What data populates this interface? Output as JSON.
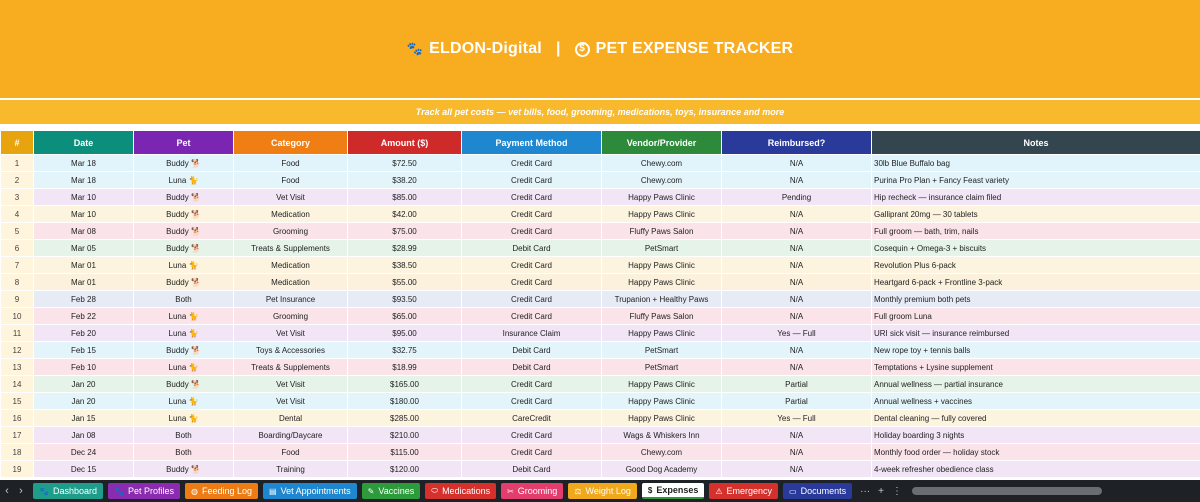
{
  "header": {
    "brand": "ELDON-Digital",
    "separator": "|",
    "title": "PET EXPENSE TRACKER",
    "subtitle": "Track all pet costs — vet bills, food, grooming, medications, toys, insurance and more",
    "brand_color": "#f8ac20"
  },
  "columns": [
    "#",
    "Date",
    "Pet",
    "Category",
    "Amount ($)",
    "Payment Method",
    "Vendor/Provider",
    "Reimbursed?",
    "Notes"
  ],
  "rows": [
    {
      "n": "1",
      "date": "Mar 18",
      "pet": "Buddy 🐕",
      "category": "Food",
      "amount": "$72.50",
      "payment": "Credit Card",
      "vendor": "Chewy.com",
      "reimbursed": "N/A",
      "notes": "30lb Blue Buffalo bag",
      "bg": "#e1f4fb"
    },
    {
      "n": "2",
      "date": "Mar 18",
      "pet": "Luna 🐈",
      "category": "Food",
      "amount": "$38.20",
      "payment": "Credit Card",
      "vendor": "Chewy.com",
      "reimbursed": "N/A",
      "notes": "Purina Pro Plan + Fancy Feast variety",
      "bg": "#e3f5fa"
    },
    {
      "n": "3",
      "date": "Mar 10",
      "pet": "Buddy 🐕",
      "category": "Vet Visit",
      "amount": "$85.00",
      "payment": "Credit Card",
      "vendor": "Happy Paws Clinic",
      "reimbursed": "Pending",
      "notes": "Hip recheck — insurance claim filed",
      "bg": "#f1e5f6"
    },
    {
      "n": "4",
      "date": "Mar 10",
      "pet": "Buddy 🐕",
      "category": "Medication",
      "amount": "$42.00",
      "payment": "Credit Card",
      "vendor": "Happy Paws Clinic",
      "reimbursed": "N/A",
      "notes": "Galliprant 20mg — 30 tablets",
      "bg": "#fdf4df"
    },
    {
      "n": "5",
      "date": "Mar 08",
      "pet": "Buddy 🐕",
      "category": "Grooming",
      "amount": "$75.00",
      "payment": "Credit Card",
      "vendor": "Fluffy Paws Salon",
      "reimbursed": "N/A",
      "notes": "Full groom — bath, trim, nails",
      "bg": "#fbe3ea"
    },
    {
      "n": "6",
      "date": "Mar 05",
      "pet": "Buddy 🐕",
      "category": "Treats & Supplements",
      "amount": "$28.99",
      "payment": "Debit Card",
      "vendor": "PetSmart",
      "reimbursed": "N/A",
      "notes": "Cosequin + Omega-3 + biscuits",
      "bg": "#e5f3e8"
    },
    {
      "n": "7",
      "date": "Mar 01",
      "pet": "Luna 🐈",
      "category": "Medication",
      "amount": "$38.50",
      "payment": "Credit Card",
      "vendor": "Happy Paws Clinic",
      "reimbursed": "N/A",
      "notes": "Revolution Plus 6-pack",
      "bg": "#fdf4df"
    },
    {
      "n": "8",
      "date": "Mar 01",
      "pet": "Buddy 🐕",
      "category": "Medication",
      "amount": "$55.00",
      "payment": "Credit Card",
      "vendor": "Happy Paws Clinic",
      "reimbursed": "N/A",
      "notes": "Heartgard 6-pack + Frontline 3-pack",
      "bg": "#fbf1dc"
    },
    {
      "n": "9",
      "date": "Feb 28",
      "pet": "Both",
      "category": "Pet Insurance",
      "amount": "$93.50",
      "payment": "Credit Card",
      "vendor": "Trupanion + Healthy Paws",
      "reimbursed": "N/A",
      "notes": "Monthly premium both pets",
      "bg": "#e6ebf6"
    },
    {
      "n": "10",
      "date": "Feb 22",
      "pet": "Luna 🐈",
      "category": "Grooming",
      "amount": "$65.00",
      "payment": "Credit Card",
      "vendor": "Fluffy Paws Salon",
      "reimbursed": "N/A",
      "notes": "Full groom Luna",
      "bg": "#fbe3ea"
    },
    {
      "n": "11",
      "date": "Feb 20",
      "pet": "Luna 🐈",
      "category": "Vet Visit",
      "amount": "$95.00",
      "payment": "Insurance Claim",
      "vendor": "Happy Paws Clinic",
      "reimbursed": "Yes — Full",
      "notes": "URI sick visit — insurance reimbursed",
      "bg": "#f1e5f6"
    },
    {
      "n": "12",
      "date": "Feb 15",
      "pet": "Buddy 🐕",
      "category": "Toys & Accessories",
      "amount": "$32.75",
      "payment": "Debit Card",
      "vendor": "PetSmart",
      "reimbursed": "N/A",
      "notes": "New rope toy + tennis balls",
      "bg": "#e3f5fa"
    },
    {
      "n": "13",
      "date": "Feb 10",
      "pet": "Luna 🐈",
      "category": "Treats & Supplements",
      "amount": "$18.99",
      "payment": "Debit Card",
      "vendor": "PetSmart",
      "reimbursed": "N/A",
      "notes": "Temptations + Lysine supplement",
      "bg": "#fbe3ea"
    },
    {
      "n": "14",
      "date": "Jan 20",
      "pet": "Buddy 🐕",
      "category": "Vet Visit",
      "amount": "$165.00",
      "payment": "Credit Card",
      "vendor": "Happy Paws Clinic",
      "reimbursed": "Partial",
      "notes": "Annual wellness — partial insurance",
      "bg": "#e5f3e8"
    },
    {
      "n": "15",
      "date": "Jan 20",
      "pet": "Luna 🐈",
      "category": "Vet Visit",
      "amount": "$180.00",
      "payment": "Credit Card",
      "vendor": "Happy Paws Clinic",
      "reimbursed": "Partial",
      "notes": "Annual wellness + vaccines",
      "bg": "#e3f5fa"
    },
    {
      "n": "16",
      "date": "Jan 15",
      "pet": "Luna 🐈",
      "category": "Dental",
      "amount": "$285.00",
      "payment": "CareCredit",
      "vendor": "Happy Paws Clinic",
      "reimbursed": "Yes — Full",
      "notes": "Dental cleaning — fully covered",
      "bg": "#fdf4df"
    },
    {
      "n": "17",
      "date": "Jan 08",
      "pet": "Both",
      "category": "Boarding/Daycare",
      "amount": "$210.00",
      "payment": "Credit Card",
      "vendor": "Wags & Whiskers Inn",
      "reimbursed": "N/A",
      "notes": "Holiday boarding 3 nights",
      "bg": "#f1e5f6"
    },
    {
      "n": "18",
      "date": "Dec 24",
      "pet": "Both",
      "category": "Food",
      "amount": "$115.00",
      "payment": "Credit Card",
      "vendor": "Chewy.com",
      "reimbursed": "N/A",
      "notes": "Monthly food order — holiday stock",
      "bg": "#fbe3ea"
    },
    {
      "n": "19",
      "date": "Dec 15",
      "pet": "Buddy 🐕",
      "category": "Training",
      "amount": "$120.00",
      "payment": "Debit Card",
      "vendor": "Good Dog Academy",
      "reimbursed": "N/A",
      "notes": "4-week refresher obedience class",
      "bg": "#f1e5f6"
    }
  ],
  "tabs": [
    {
      "label": "Dashboard",
      "icon": "paw-icon",
      "glyph": "🐾",
      "color": "#1e9e8a"
    },
    {
      "label": "Pet Profiles",
      "icon": "paw-icon",
      "glyph": "🐾",
      "color": "#8a2bb0"
    },
    {
      "label": "Feeding Log",
      "icon": "bowl-icon",
      "glyph": "◍",
      "color": "#ee7c14"
    },
    {
      "label": "Vet Appointments",
      "icon": "clipboard-icon",
      "glyph": "▤",
      "color": "#1f87cf"
    },
    {
      "label": "Vaccines",
      "icon": "syringe-icon",
      "glyph": "✎",
      "color": "#2d9a3b"
    },
    {
      "label": "Medications",
      "icon": "pill-icon",
      "glyph": "⬭",
      "color": "#d5312c"
    },
    {
      "label": "Grooming",
      "icon": "scissors-icon",
      "glyph": "✂",
      "color": "#e23d6c"
    },
    {
      "label": "Weight Log",
      "icon": "scale-icon",
      "glyph": "⚖",
      "color": "#f0a81c"
    },
    {
      "label": "Expenses",
      "icon": "coin-icon",
      "glyph": "$",
      "color": "#ffffff",
      "active": true
    },
    {
      "label": "Emergency",
      "icon": "alert-icon",
      "glyph": "⚠",
      "color": "#d5312c"
    },
    {
      "label": "Documents",
      "icon": "folder-icon",
      "glyph": "▭",
      "color": "#2a3a9a"
    }
  ],
  "tab_extras": {
    "more": "···",
    "add": "+",
    "menu": "⋮"
  },
  "col_colors": {
    "num_bg": "#fff4dc",
    "date_bg": "#eaf7f4",
    "pet_bg": "#f3e8f8",
    "cat_bg": "#fdeede",
    "amt_bg": "#fce8e8",
    "pay_bg": "#e5f2fc",
    "vend_bg": "#e6f4e8",
    "reimb_bg": "#e7e9f7"
  }
}
